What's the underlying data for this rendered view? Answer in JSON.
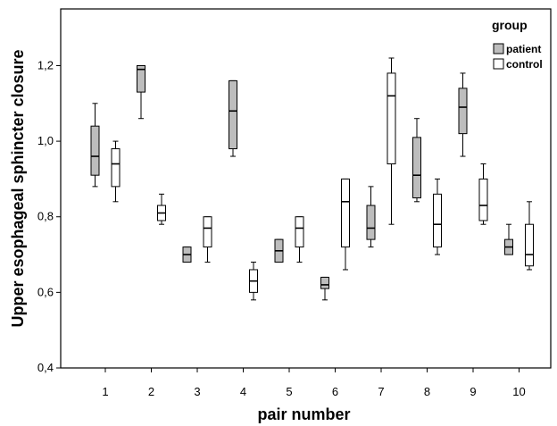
{
  "chart_data": {
    "type": "boxplot",
    "xlabel": "pair number",
    "ylabel": "Upper esophageal sphincter closure",
    "ylim": [
      0.4,
      1.35
    ],
    "yticks": [
      0.4,
      0.6,
      0.8,
      1.0,
      1.2
    ],
    "ytick_labels": [
      "0,4",
      "0,6",
      "0,8",
      "1,0",
      "1,2"
    ],
    "categories": [
      "1",
      "2",
      "3",
      "4",
      "5",
      "6",
      "7",
      "8",
      "9",
      "10"
    ],
    "legend": {
      "title": "group",
      "position": "top-right",
      "items": [
        {
          "label": "patient",
          "color": "#bdbdbd"
        },
        {
          "label": "control",
          "color": "#ffffff"
        }
      ]
    },
    "series": [
      {
        "name": "patient",
        "color": "#bdbdbd",
        "boxes": [
          {
            "min": 0.88,
            "q1": 0.91,
            "median": 0.96,
            "q3": 1.04,
            "max": 1.1
          },
          {
            "min": 1.06,
            "q1": 1.13,
            "median": 1.19,
            "q3": 1.2,
            "max": 1.2
          },
          {
            "min": 0.68,
            "q1": 0.68,
            "median": 0.7,
            "q3": 0.72,
            "max": 0.72
          },
          {
            "min": 0.96,
            "q1": 0.98,
            "median": 1.08,
            "q3": 1.16,
            "max": 1.16
          },
          {
            "min": 0.68,
            "q1": 0.68,
            "median": 0.71,
            "q3": 0.74,
            "max": 0.74
          },
          {
            "min": 0.58,
            "q1": 0.61,
            "median": 0.62,
            "q3": 0.64,
            "max": 0.64
          },
          {
            "min": 0.72,
            "q1": 0.74,
            "median": 0.77,
            "q3": 0.83,
            "max": 0.88
          },
          {
            "min": 0.84,
            "q1": 0.85,
            "median": 0.91,
            "q3": 1.01,
            "max": 1.06
          },
          {
            "min": 0.96,
            "q1": 1.02,
            "median": 1.09,
            "q3": 1.14,
            "max": 1.18
          },
          {
            "min": 0.7,
            "q1": 0.7,
            "median": 0.72,
            "q3": 0.74,
            "max": 0.78
          }
        ]
      },
      {
        "name": "control",
        "color": "#ffffff",
        "boxes": [
          {
            "min": 0.84,
            "q1": 0.88,
            "median": 0.94,
            "q3": 0.98,
            "max": 1.0
          },
          {
            "min": 0.78,
            "q1": 0.79,
            "median": 0.81,
            "q3": 0.83,
            "max": 0.86
          },
          {
            "min": 0.68,
            "q1": 0.72,
            "median": 0.77,
            "q3": 0.8,
            "max": 0.8
          },
          {
            "min": 0.58,
            "q1": 0.6,
            "median": 0.63,
            "q3": 0.66,
            "max": 0.68
          },
          {
            "min": 0.68,
            "q1": 0.72,
            "median": 0.77,
            "q3": 0.8,
            "max": 0.8
          },
          {
            "min": 0.66,
            "q1": 0.72,
            "median": 0.84,
            "q3": 0.9,
            "max": 0.9
          },
          {
            "min": 0.78,
            "q1": 0.94,
            "median": 1.12,
            "q3": 1.18,
            "max": 1.22
          },
          {
            "min": 0.7,
            "q1": 0.72,
            "median": 0.78,
            "q3": 0.86,
            "max": 0.9
          },
          {
            "min": 0.78,
            "q1": 0.79,
            "median": 0.83,
            "q3": 0.9,
            "max": 0.94
          },
          {
            "min": 0.66,
            "q1": 0.67,
            "median": 0.7,
            "q3": 0.78,
            "max": 0.84
          }
        ]
      }
    ]
  }
}
